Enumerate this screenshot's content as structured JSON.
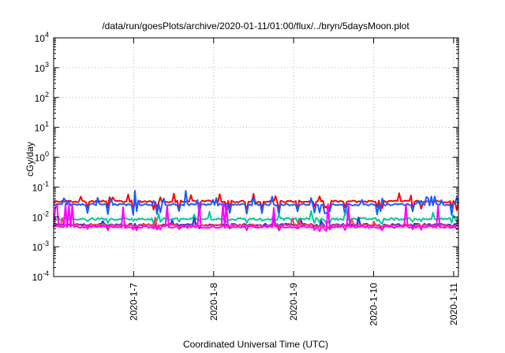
{
  "chart_data": {
    "type": "line",
    "title": "/data/run/goesPlots/archive/2020-01-11/01:00/flux/../bryn/5daysMoon.plot",
    "xlabel": "Coordinated Universal Time (UTC)",
    "ylabel": "cGy/day",
    "yscale": "log",
    "ylim_exp": [
      -4,
      4
    ],
    "y_tick_exponents": [
      -4,
      -3,
      -2,
      -1,
      0,
      1,
      2,
      3,
      4
    ],
    "y_tick_base": "10",
    "xlim_days": [
      6.0,
      11.06
    ],
    "x_ticks": [
      {
        "day": 7,
        "label": "2020-1-7"
      },
      {
        "day": 8,
        "label": "2020-1-8"
      },
      {
        "day": 9,
        "label": "2020-1-9"
      },
      {
        "day": 10,
        "label": "2020-1-10"
      },
      {
        "day": 11,
        "label": "2020-1-11"
      }
    ],
    "grid": true,
    "series": [
      {
        "color": "#ff0000",
        "base": 0.033,
        "low_mult": 0.62,
        "spike_prob": 0.16
      },
      {
        "color": "#1a5cff",
        "base": 0.026,
        "low_mult": 0.55,
        "spike_prob": 0.18,
        "peak": 0.075
      },
      {
        "color": "#00c8a0",
        "base": 0.0085,
        "low_mult": 0.85,
        "spike_prob": 0.12
      },
      {
        "color": "#3f2bd1",
        "base": 0.0055,
        "low_mult": 0.9,
        "spike_prob": 0.13,
        "fill": "#2f3fe0"
      },
      {
        "color": "#ff3c64",
        "base": 0.0052,
        "low_mult": 0.9,
        "spike_prob": 0.12
      },
      {
        "color": "#ff00ff",
        "base": 0.0046,
        "low_mult": 0.9,
        "spike_prob": 0.2,
        "spike_to": 0.026
      }
    ]
  }
}
